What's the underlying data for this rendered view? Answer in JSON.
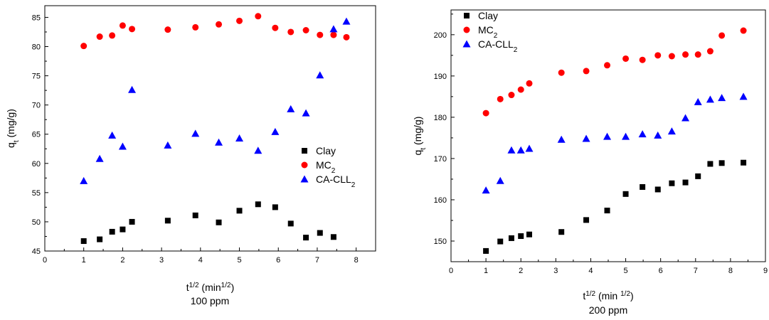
{
  "chart_data": [
    {
      "type": "scatter",
      "caption": "100 ppm",
      "xlabel": {
        "base": "t",
        "sup": "1/2",
        "rest": " (min",
        "rest_sup": "1/2",
        "close": ")"
      },
      "ylabel": {
        "base": "q",
        "sub": "t",
        "rest": " (mg/g)"
      },
      "xlim": [
        0,
        8.5
      ],
      "ylim": [
        45,
        87
      ],
      "x_ticks": [
        0,
        1,
        2,
        3,
        4,
        5,
        6,
        7,
        8
      ],
      "y_ticks": [
        45,
        50,
        55,
        60,
        65,
        70,
        75,
        80,
        85
      ],
      "legend_position": "right-middle",
      "series": [
        {
          "name": "Clay",
          "marker": "square",
          "color": "#000000",
          "x": [
            1.0,
            1.41,
            1.73,
            2.0,
            2.24,
            3.16,
            3.87,
            4.47,
            5.0,
            5.48,
            5.92,
            6.32,
            6.71,
            7.07,
            7.42
          ],
          "y": [
            46.7,
            47.0,
            48.3,
            48.7,
            50.0,
            50.2,
            51.1,
            49.9,
            51.9,
            53.0,
            52.5,
            49.7,
            47.3,
            48.1,
            47.4
          ]
        },
        {
          "name": "MC",
          "name_sub": "2",
          "marker": "circle",
          "color": "#ff0000",
          "x": [
            1.0,
            1.41,
            1.73,
            2.0,
            2.24,
            3.16,
            3.87,
            4.47,
            5.0,
            5.48,
            5.92,
            6.32,
            6.71,
            7.07,
            7.42,
            7.75
          ],
          "y": [
            80.1,
            81.7,
            81.9,
            83.6,
            83.0,
            82.9,
            83.3,
            83.8,
            84.4,
            85.2,
            83.2,
            82.5,
            82.8,
            82.0,
            82.0,
            81.6
          ]
        },
        {
          "name": "CA-CLL",
          "name_sub": "2",
          "marker": "triangle",
          "color": "#0000ff",
          "x": [
            1.0,
            1.41,
            1.73,
            2.0,
            2.24,
            3.16,
            3.87,
            4.47,
            5.0,
            5.48,
            5.92,
            6.32,
            6.71,
            7.07,
            7.42,
            7.75
          ],
          "y": [
            57.0,
            60.8,
            64.8,
            62.9,
            72.6,
            63.1,
            65.1,
            63.6,
            64.3,
            62.2,
            65.4,
            69.3,
            68.6,
            75.1,
            83.0,
            84.3
          ]
        }
      ]
    },
    {
      "type": "scatter",
      "caption": "200 ppm",
      "xlabel": {
        "base": "t",
        "sup": "1/2",
        "rest": " (min ",
        "rest_sup": "1/2",
        "close": ")"
      },
      "ylabel": {
        "base": "q",
        "sub": "t",
        "rest": " (mg/g)"
      },
      "xlim": [
        0,
        9
      ],
      "ylim": [
        145,
        206
      ],
      "x_ticks": [
        0,
        1,
        2,
        3,
        4,
        5,
        6,
        7,
        8,
        9
      ],
      "y_ticks": [
        150,
        160,
        170,
        180,
        190,
        200
      ],
      "legend_position": "top-left",
      "series": [
        {
          "name": "Clay",
          "marker": "square",
          "color": "#000000",
          "x": [
            1.0,
            1.41,
            1.73,
            2.0,
            2.24,
            3.16,
            3.87,
            4.47,
            5.0,
            5.48,
            5.92,
            6.32,
            6.71,
            7.07,
            7.42,
            7.75,
            8.37
          ],
          "y": [
            147.6,
            149.9,
            150.7,
            151.2,
            151.6,
            152.2,
            155.1,
            157.4,
            161.4,
            163.1,
            162.5,
            164.0,
            164.2,
            165.7,
            168.7,
            168.9,
            169.0
          ]
        },
        {
          "name": "MC",
          "name_sub": "2",
          "marker": "circle",
          "color": "#ff0000",
          "x": [
            1.0,
            1.41,
            1.73,
            2.0,
            2.24,
            3.16,
            3.87,
            4.47,
            5.0,
            5.48,
            5.92,
            6.32,
            6.71,
            7.07,
            7.42,
            7.75,
            8.37
          ],
          "y": [
            181.0,
            184.4,
            185.4,
            186.7,
            188.2,
            190.8,
            191.2,
            192.6,
            194.2,
            193.9,
            195.0,
            194.8,
            195.2,
            195.2,
            196.0,
            199.8,
            201.0
          ]
        },
        {
          "name": "CA-CLL",
          "name_sub": "2",
          "marker": "triangle",
          "color": "#0000ff",
          "x": [
            1.0,
            1.41,
            1.73,
            2.0,
            2.24,
            3.16,
            3.87,
            4.47,
            5.0,
            5.48,
            5.92,
            6.32,
            6.71,
            7.07,
            7.42,
            7.75,
            8.37
          ],
          "y": [
            162.3,
            164.6,
            172.0,
            172.0,
            172.4,
            174.6,
            174.8,
            175.3,
            175.3,
            175.9,
            175.6,
            176.6,
            179.8,
            183.7,
            184.3,
            184.7,
            185.0
          ]
        }
      ]
    }
  ]
}
